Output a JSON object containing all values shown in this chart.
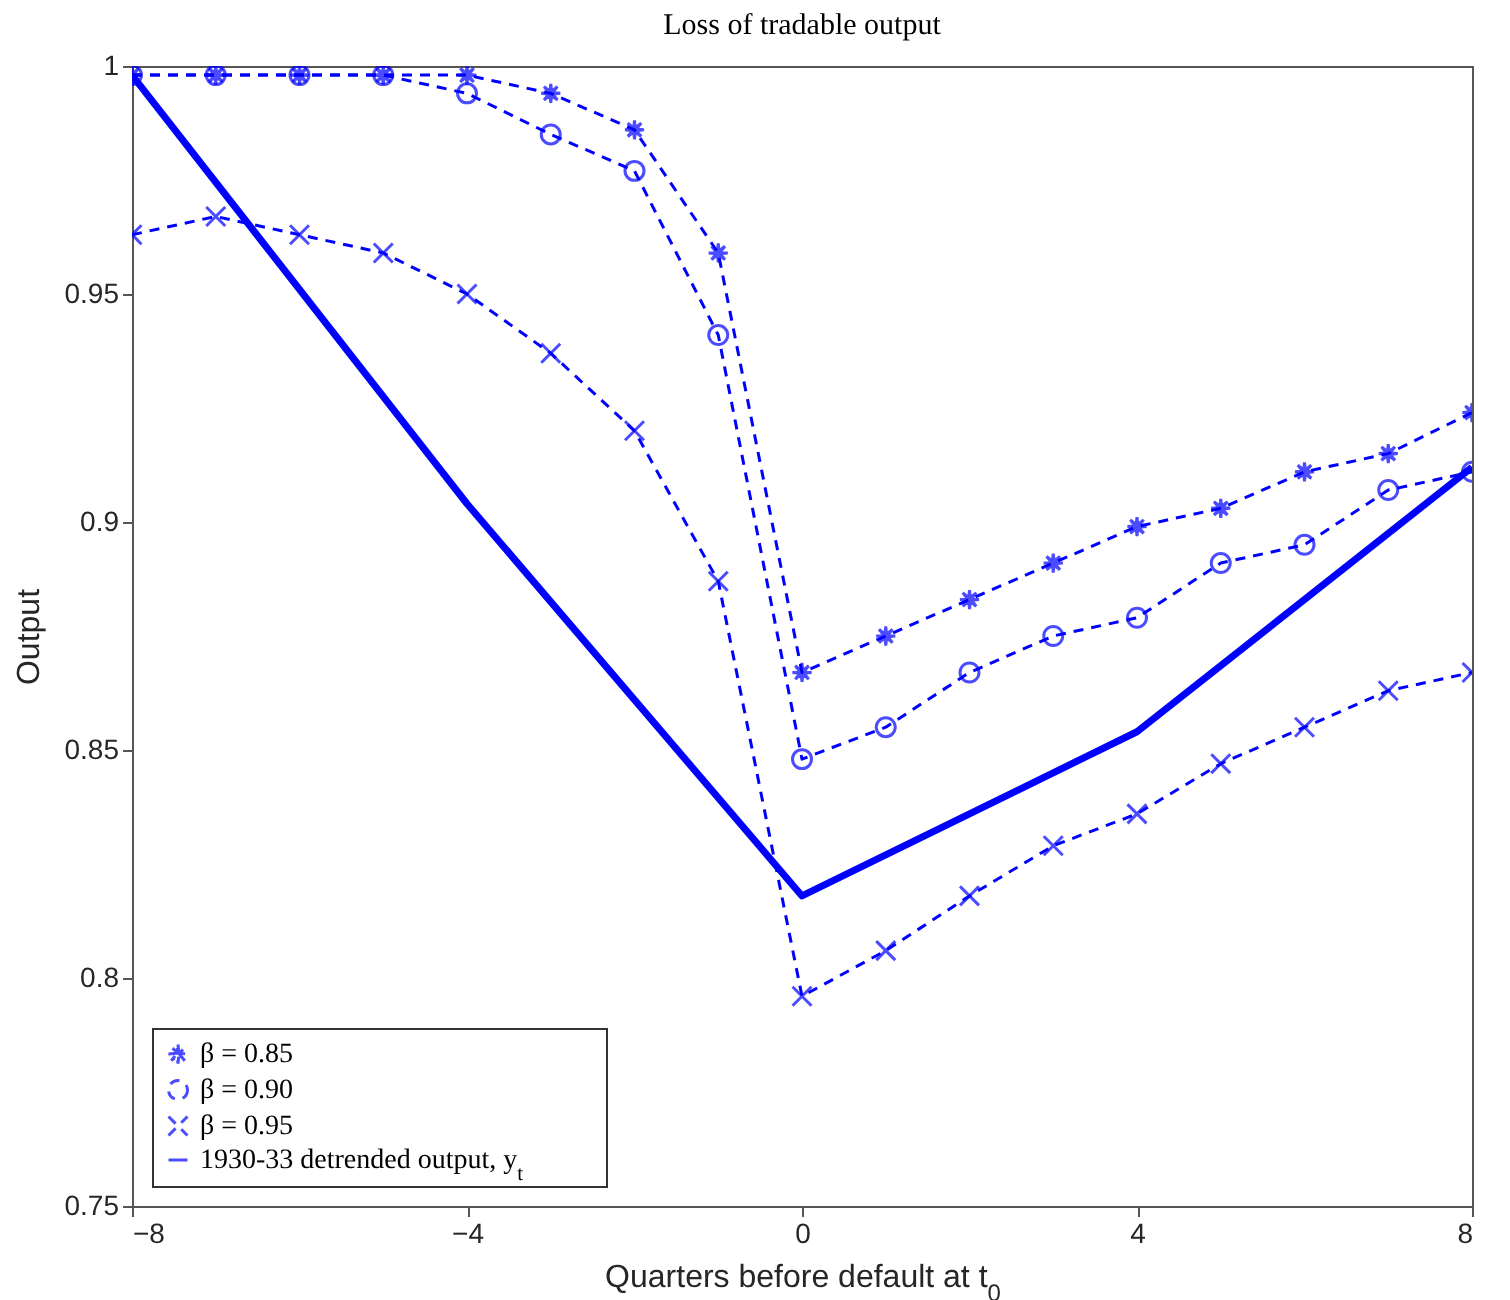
{
  "chart_data": {
    "type": "line",
    "title": "Loss of tradable output",
    "xlabel": "Quarters before default at t$_{0}$",
    "ylabel": "Output",
    "x": [
      -8,
      -7,
      -6,
      -5,
      -4,
      -3,
      -2,
      -1,
      0,
      1,
      2,
      3,
      4,
      5,
      6,
      7,
      8
    ],
    "series": [
      {
        "name": "β = 0.85",
        "color": "#0000ff",
        "marker": "star",
        "line_style": "dashed",
        "values": [
          0.998,
          0.998,
          0.998,
          0.998,
          0.998,
          0.994,
          0.986,
          0.959,
          0.867,
          0.875,
          0.883,
          0.891,
          0.899,
          0.903,
          0.911,
          0.915,
          0.924
        ]
      },
      {
        "name": "β = 0.90",
        "color": "#0000ff",
        "marker": "circle",
        "line_style": "dashed",
        "values": [
          0.998,
          0.998,
          0.998,
          0.998,
          0.994,
          0.985,
          0.977,
          0.941,
          0.848,
          0.855,
          0.867,
          0.875,
          0.879,
          0.891,
          0.895,
          0.907,
          0.911
        ]
      },
      {
        "name": "β = 0.95",
        "color": "#0000ff",
        "marker": "cross",
        "line_style": "dashed",
        "values": [
          0.963,
          0.967,
          0.963,
          0.959,
          0.95,
          0.937,
          0.92,
          0.887,
          0.796,
          0.806,
          0.818,
          0.829,
          0.836,
          0.847,
          0.855,
          0.863,
          0.867
        ]
      },
      {
        "name": "1930-33 detrended output, y$_{t}$",
        "color": "#0000ff",
        "marker": "none",
        "line_style": "solid",
        "x": [
          -8,
          -4,
          0,
          4,
          8
        ],
        "values": [
          0.998,
          0.904,
          0.818,
          0.854,
          0.912
        ]
      }
    ],
    "xlim": [
      -8,
      8
    ],
    "xticks": [
      -8,
      -4,
      0,
      4,
      8
    ],
    "ylim": [
      0.75,
      1
    ],
    "yticks": [
      0.75,
      0.8,
      0.85,
      0.9,
      0.95,
      1
    ],
    "grid": false,
    "legend": "bottom left"
  }
}
